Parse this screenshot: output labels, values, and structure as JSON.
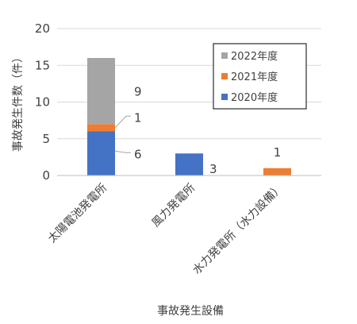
{
  "chart_data": {
    "type": "bar",
    "stacked": true,
    "categories": [
      "太陽電池発電所",
      "風力発電所",
      "水力発電所（水力設備）"
    ],
    "series": [
      {
        "name": "2020年度",
        "values": [
          6,
          3,
          0
        ],
        "color": "#4472C4"
      },
      {
        "name": "2021年度",
        "values": [
          1,
          0,
          1
        ],
        "color": "#ED7D31"
      },
      {
        "name": "2022年度",
        "values": [
          9,
          0,
          0
        ],
        "color": "#A5A5A5"
      }
    ],
    "data_labels": [
      "6",
      "1",
      "9",
      "3",
      "1"
    ],
    "xlabel": "事故発生設備",
    "ylabel": "事故発生件数（件）",
    "ylim": [
      0,
      20
    ],
    "yticks": [
      "0",
      "5",
      "10",
      "15",
      "20"
    ],
    "grid": true,
    "legend_position": "top-right"
  }
}
